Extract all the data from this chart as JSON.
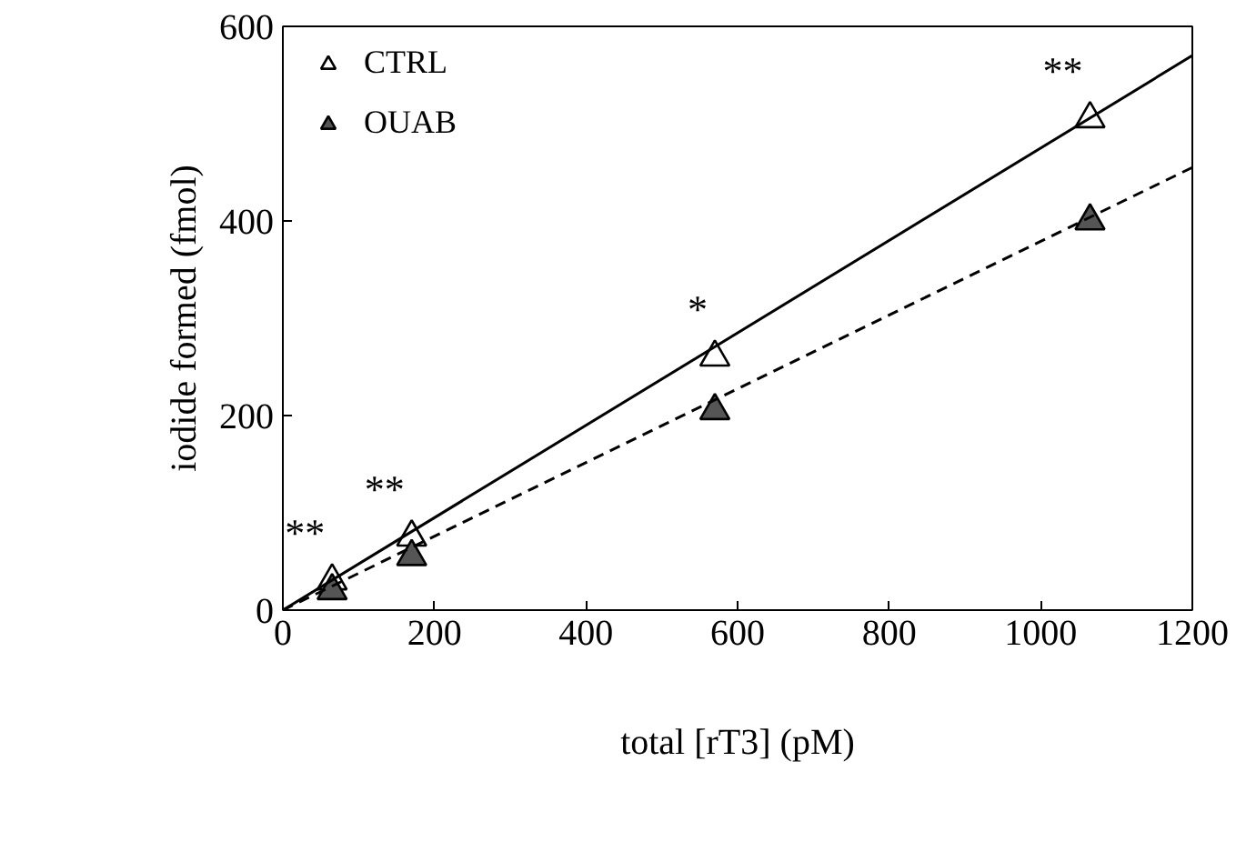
{
  "chart_data": {
    "type": "scatter",
    "xlabel": "total [rT3] (pM)",
    "ylabel": "iodide formed (fmol)",
    "xlim": [
      0,
      1200
    ],
    "ylim": [
      0,
      600
    ],
    "xticks": [
      0,
      200,
      400,
      600,
      800,
      1000,
      1200
    ],
    "yticks": [
      0,
      200,
      400,
      600
    ],
    "legend": "top left",
    "grid": false,
    "series": [
      {
        "name": "CTRL",
        "color": "#ffffff",
        "marker": "triangle",
        "x": [
          65,
          170,
          570,
          1065
        ],
        "values": [
          30,
          75,
          260,
          505
        ]
      },
      {
        "name": "OUAB",
        "color": "#555555",
        "marker": "triangle",
        "x": [
          65,
          170,
          570,
          1065
        ],
        "values": [
          20,
          55,
          205,
          400
        ]
      },
      {
        "type": "line",
        "color": "#000000",
        "line_style": "solid",
        "x": [
          0,
          1200
        ],
        "values": [
          0,
          570
        ]
      },
      {
        "type": "line",
        "color": "#000000",
        "line_style": "dashed",
        "x": [
          0,
          1200
        ],
        "values": [
          0,
          455
        ]
      }
    ],
    "annotations": [
      {
        "text": "**",
        "x": 65,
        "y": 30
      },
      {
        "text": "**",
        "x": 170,
        "y": 75
      },
      {
        "text": "*",
        "x": 570,
        "y": 260
      },
      {
        "text": "**",
        "x": 1065,
        "y": 505
      }
    ]
  }
}
